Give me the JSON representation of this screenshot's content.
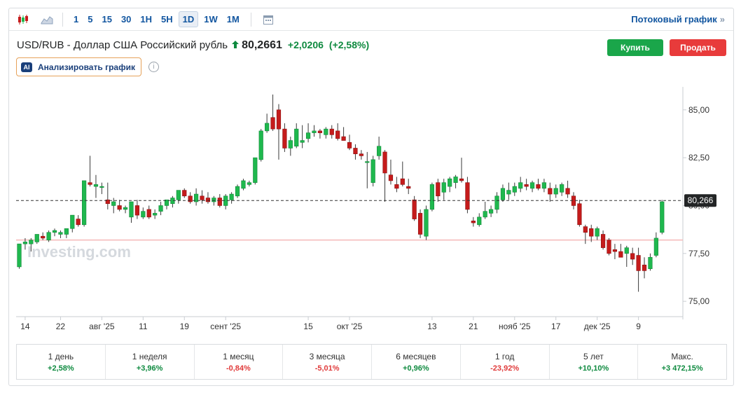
{
  "toolbar": {
    "periods": [
      "1",
      "5",
      "15",
      "30",
      "1H",
      "5H",
      "1D",
      "1W",
      "1M"
    ],
    "active_period": "1D",
    "stream_label": "Потоковый график",
    "stream_arrow": "»"
  },
  "header": {
    "title": "USD/RUB - Доллар США Российский рубль",
    "price": "80,2661",
    "change": "+2,0206",
    "change_pct": "(+2,58%)"
  },
  "actions": {
    "buy": "Купить",
    "sell": "Продать"
  },
  "ai": {
    "badge": "AI",
    "label": "Анализировать график",
    "info": "i"
  },
  "watermark": "Investing.com",
  "colors": {
    "up": "#1fb84e",
    "down": "#c51b1b",
    "accent": "#1256a0",
    "buy": "#1aa64a",
    "sell": "#e83b3b"
  },
  "chart_data": {
    "type": "candlestick",
    "y_ticks": [
      "85,00",
      "82,50",
      "80,00",
      "77,50",
      "75,00"
    ],
    "y_tick_values": [
      85,
      82.5,
      80,
      77.5,
      75
    ],
    "ylim": [
      74.2,
      86.2
    ],
    "x_tick_labels": [
      "14",
      "22",
      "авг '25",
      "11",
      "19",
      "сент '25",
      "15",
      "окт '25",
      "13",
      "21",
      "нояб '25",
      "17",
      "дек '25",
      "9"
    ],
    "x_tick_index": [
      1,
      7,
      14,
      21,
      28,
      35,
      49,
      56,
      70,
      77,
      84,
      91,
      98,
      105
    ],
    "current_price": 80.266,
    "current_price_label": "80,266",
    "reference_line": 78.2,
    "candles": [
      {
        "o": 76.8,
        "h": 78.0,
        "l": 76.7,
        "c": 78.0
      },
      {
        "o": 78.0,
        "h": 78.3,
        "l": 77.7,
        "c": 78.1
      },
      {
        "o": 78.0,
        "h": 78.3,
        "l": 77.6,
        "c": 78.2
      },
      {
        "o": 78.1,
        "h": 78.5,
        "l": 78.0,
        "c": 78.5
      },
      {
        "o": 78.4,
        "h": 78.6,
        "l": 78.2,
        "c": 78.3
      },
      {
        "o": 78.2,
        "h": 78.7,
        "l": 78.1,
        "c": 78.6
      },
      {
        "o": 78.6,
        "h": 78.8,
        "l": 78.4,
        "c": 78.7
      },
      {
        "o": 78.5,
        "h": 78.7,
        "l": 78.3,
        "c": 78.6
      },
      {
        "o": 78.5,
        "h": 78.8,
        "l": 78.3,
        "c": 78.8
      },
      {
        "o": 78.8,
        "h": 79.5,
        "l": 78.6,
        "c": 79.5
      },
      {
        "o": 79.3,
        "h": 79.5,
        "l": 78.9,
        "c": 79.0
      },
      {
        "o": 79.0,
        "h": 81.3,
        "l": 78.9,
        "c": 81.3
      },
      {
        "o": 81.2,
        "h": 82.6,
        "l": 81.0,
        "c": 81.1
      },
      {
        "o": 81.0,
        "h": 81.6,
        "l": 80.4,
        "c": 81.1
      },
      {
        "o": 81.0,
        "h": 81.2,
        "l": 80.6,
        "c": 81.0
      },
      {
        "o": 80.3,
        "h": 81.2,
        "l": 79.8,
        "c": 80.1
      },
      {
        "o": 80.0,
        "h": 80.4,
        "l": 79.6,
        "c": 80.2
      },
      {
        "o": 80.0,
        "h": 80.3,
        "l": 79.7,
        "c": 79.8
      },
      {
        "o": 79.8,
        "h": 80.0,
        "l": 79.6,
        "c": 79.9
      },
      {
        "o": 79.4,
        "h": 80.2,
        "l": 79.1,
        "c": 80.2
      },
      {
        "o": 80.0,
        "h": 80.3,
        "l": 79.3,
        "c": 79.5
      },
      {
        "o": 79.4,
        "h": 79.9,
        "l": 79.3,
        "c": 79.7
      },
      {
        "o": 79.8,
        "h": 80.0,
        "l": 79.3,
        "c": 79.4
      },
      {
        "o": 79.5,
        "h": 79.8,
        "l": 79.3,
        "c": 79.6
      },
      {
        "o": 79.7,
        "h": 80.2,
        "l": 79.5,
        "c": 80.0
      },
      {
        "o": 80.0,
        "h": 80.3,
        "l": 79.8,
        "c": 80.3
      },
      {
        "o": 80.1,
        "h": 80.5,
        "l": 79.9,
        "c": 80.4
      },
      {
        "o": 80.3,
        "h": 80.8,
        "l": 80.1,
        "c": 80.8
      },
      {
        "o": 80.8,
        "h": 80.9,
        "l": 80.4,
        "c": 80.5
      },
      {
        "o": 80.5,
        "h": 80.7,
        "l": 80.1,
        "c": 80.2
      },
      {
        "o": 80.2,
        "h": 80.9,
        "l": 80.0,
        "c": 80.6
      },
      {
        "o": 80.5,
        "h": 80.8,
        "l": 80.1,
        "c": 80.3
      },
      {
        "o": 80.4,
        "h": 80.7,
        "l": 80.1,
        "c": 80.2
      },
      {
        "o": 80.2,
        "h": 80.5,
        "l": 80.0,
        "c": 80.4
      },
      {
        "o": 80.4,
        "h": 80.6,
        "l": 79.9,
        "c": 80.0
      },
      {
        "o": 80.0,
        "h": 80.6,
        "l": 79.8,
        "c": 80.5
      },
      {
        "o": 80.3,
        "h": 80.7,
        "l": 80.1,
        "c": 80.6
      },
      {
        "o": 80.5,
        "h": 81.1,
        "l": 80.4,
        "c": 81.0
      },
      {
        "o": 80.9,
        "h": 81.4,
        "l": 80.8,
        "c": 81.3
      },
      {
        "o": 81.1,
        "h": 81.3,
        "l": 81.0,
        "c": 81.2
      },
      {
        "o": 81.2,
        "h": 82.5,
        "l": 81.1,
        "c": 82.5
      },
      {
        "o": 82.4,
        "h": 84.0,
        "l": 82.3,
        "c": 83.9
      },
      {
        "o": 83.9,
        "h": 84.8,
        "l": 83.8,
        "c": 84.3
      },
      {
        "o": 84.6,
        "h": 85.8,
        "l": 83.9,
        "c": 84.0
      },
      {
        "o": 85.0,
        "h": 85.3,
        "l": 82.4,
        "c": 84.0
      },
      {
        "o": 84.0,
        "h": 84.3,
        "l": 82.8,
        "c": 83.0
      },
      {
        "o": 83.0,
        "h": 83.6,
        "l": 82.6,
        "c": 83.4
      },
      {
        "o": 83.1,
        "h": 84.3,
        "l": 83.0,
        "c": 84.0
      },
      {
        "o": 83.3,
        "h": 84.2,
        "l": 83.0,
        "c": 83.4
      },
      {
        "o": 83.5,
        "h": 84.3,
        "l": 83.3,
        "c": 83.8
      },
      {
        "o": 83.8,
        "h": 84.2,
        "l": 83.6,
        "c": 83.9
      },
      {
        "o": 83.9,
        "h": 84.0,
        "l": 83.5,
        "c": 83.8
      },
      {
        "o": 83.7,
        "h": 84.1,
        "l": 83.5,
        "c": 84.0
      },
      {
        "o": 84.0,
        "h": 84.2,
        "l": 83.5,
        "c": 83.7
      },
      {
        "o": 83.9,
        "h": 84.3,
        "l": 83.4,
        "c": 83.5
      },
      {
        "o": 83.6,
        "h": 84.1,
        "l": 83.4,
        "c": 83.4
      },
      {
        "o": 83.3,
        "h": 83.7,
        "l": 82.9,
        "c": 83.0
      },
      {
        "o": 83.0,
        "h": 83.2,
        "l": 82.4,
        "c": 82.7
      },
      {
        "o": 82.7,
        "h": 82.9,
        "l": 82.4,
        "c": 82.6
      },
      {
        "o": 82.3,
        "h": 82.8,
        "l": 80.9,
        "c": 82.3
      },
      {
        "o": 81.2,
        "h": 82.6,
        "l": 81.0,
        "c": 82.4
      },
      {
        "o": 82.6,
        "h": 83.6,
        "l": 82.4,
        "c": 83.1
      },
      {
        "o": 82.8,
        "h": 82.9,
        "l": 80.2,
        "c": 81.7
      },
      {
        "o": 81.6,
        "h": 82.4,
        "l": 81.1,
        "c": 81.3
      },
      {
        "o": 81.1,
        "h": 81.5,
        "l": 80.7,
        "c": 80.9
      },
      {
        "o": 81.4,
        "h": 82.3,
        "l": 81.0,
        "c": 81.1
      },
      {
        "o": 81.0,
        "h": 81.4,
        "l": 80.6,
        "c": 80.9
      },
      {
        "o": 80.3,
        "h": 80.5,
        "l": 79.2,
        "c": 79.3
      },
      {
        "o": 79.6,
        "h": 79.8,
        "l": 78.3,
        "c": 78.5
      },
      {
        "o": 78.4,
        "h": 80.0,
        "l": 78.2,
        "c": 79.8
      },
      {
        "o": 79.8,
        "h": 81.2,
        "l": 79.7,
        "c": 81.1
      },
      {
        "o": 81.2,
        "h": 81.4,
        "l": 80.2,
        "c": 80.5
      },
      {
        "o": 80.7,
        "h": 81.4,
        "l": 80.3,
        "c": 81.2
      },
      {
        "o": 81.0,
        "h": 81.5,
        "l": 80.7,
        "c": 81.4
      },
      {
        "o": 81.2,
        "h": 81.6,
        "l": 80.9,
        "c": 81.5
      },
      {
        "o": 81.4,
        "h": 82.5,
        "l": 81.2,
        "c": 81.3
      },
      {
        "o": 81.2,
        "h": 81.5,
        "l": 79.6,
        "c": 79.8
      },
      {
        "o": 79.2,
        "h": 79.4,
        "l": 78.9,
        "c": 79.1
      },
      {
        "o": 79.0,
        "h": 79.6,
        "l": 78.9,
        "c": 79.4
      },
      {
        "o": 79.4,
        "h": 80.2,
        "l": 79.3,
        "c": 79.7
      },
      {
        "o": 79.6,
        "h": 80.0,
        "l": 79.4,
        "c": 79.8
      },
      {
        "o": 79.8,
        "h": 80.7,
        "l": 79.6,
        "c": 80.5
      },
      {
        "o": 80.3,
        "h": 81.1,
        "l": 80.2,
        "c": 80.9
      },
      {
        "o": 80.6,
        "h": 81.2,
        "l": 80.3,
        "c": 80.8
      },
      {
        "o": 80.7,
        "h": 81.2,
        "l": 80.5,
        "c": 81.0
      },
      {
        "o": 80.9,
        "h": 81.5,
        "l": 80.7,
        "c": 81.2
      },
      {
        "o": 81.1,
        "h": 81.4,
        "l": 80.8,
        "c": 81.0
      },
      {
        "o": 80.9,
        "h": 81.3,
        "l": 80.7,
        "c": 81.2
      },
      {
        "o": 81.1,
        "h": 81.4,
        "l": 80.8,
        "c": 80.9
      },
      {
        "o": 80.9,
        "h": 81.4,
        "l": 80.7,
        "c": 81.2
      },
      {
        "o": 80.9,
        "h": 81.2,
        "l": 80.2,
        "c": 80.6
      },
      {
        "o": 80.6,
        "h": 81.1,
        "l": 80.4,
        "c": 80.9
      },
      {
        "o": 80.7,
        "h": 81.2,
        "l": 80.5,
        "c": 81.1
      },
      {
        "o": 80.9,
        "h": 81.3,
        "l": 80.4,
        "c": 80.6
      },
      {
        "o": 80.5,
        "h": 80.7,
        "l": 79.8,
        "c": 80.0
      },
      {
        "o": 80.1,
        "h": 80.3,
        "l": 78.9,
        "c": 79.0
      },
      {
        "o": 78.9,
        "h": 79.0,
        "l": 78.0,
        "c": 78.6
      },
      {
        "o": 78.8,
        "h": 79.0,
        "l": 78.1,
        "c": 78.4
      },
      {
        "o": 78.4,
        "h": 78.9,
        "l": 78.2,
        "c": 78.8
      },
      {
        "o": 78.5,
        "h": 78.7,
        "l": 77.7,
        "c": 77.8
      },
      {
        "o": 78.2,
        "h": 78.3,
        "l": 77.4,
        "c": 77.5
      },
      {
        "o": 77.7,
        "h": 78.0,
        "l": 77.2,
        "c": 77.6
      },
      {
        "o": 77.6,
        "h": 78.0,
        "l": 77.3,
        "c": 77.3
      },
      {
        "o": 77.5,
        "h": 77.9,
        "l": 76.8,
        "c": 77.8
      },
      {
        "o": 77.5,
        "h": 77.8,
        "l": 76.9,
        "c": 77.2
      },
      {
        "o": 77.4,
        "h": 77.8,
        "l": 75.5,
        "c": 76.6
      },
      {
        "o": 76.9,
        "h": 77.3,
        "l": 76.2,
        "c": 76.6
      },
      {
        "o": 76.7,
        "h": 77.5,
        "l": 76.6,
        "c": 77.3
      },
      {
        "o": 77.4,
        "h": 78.6,
        "l": 77.3,
        "c": 78.3
      },
      {
        "o": 78.6,
        "h": 80.3,
        "l": 78.5,
        "c": 80.2
      }
    ]
  },
  "performance": [
    {
      "label": "1 день",
      "value": "+2,58%",
      "dir": "pos"
    },
    {
      "label": "1 неделя",
      "value": "+3,96%",
      "dir": "pos"
    },
    {
      "label": "1 месяц",
      "value": "-0,84%",
      "dir": "neg"
    },
    {
      "label": "3 месяца",
      "value": "-5,01%",
      "dir": "neg"
    },
    {
      "label": "6 месяцев",
      "value": "+0,96%",
      "dir": "pos"
    },
    {
      "label": "1 год",
      "value": "-23,92%",
      "dir": "neg"
    },
    {
      "label": "5 лет",
      "value": "+10,10%",
      "dir": "pos"
    },
    {
      "label": "Макс.",
      "value": "+3 472,15%",
      "dir": "pos"
    }
  ]
}
